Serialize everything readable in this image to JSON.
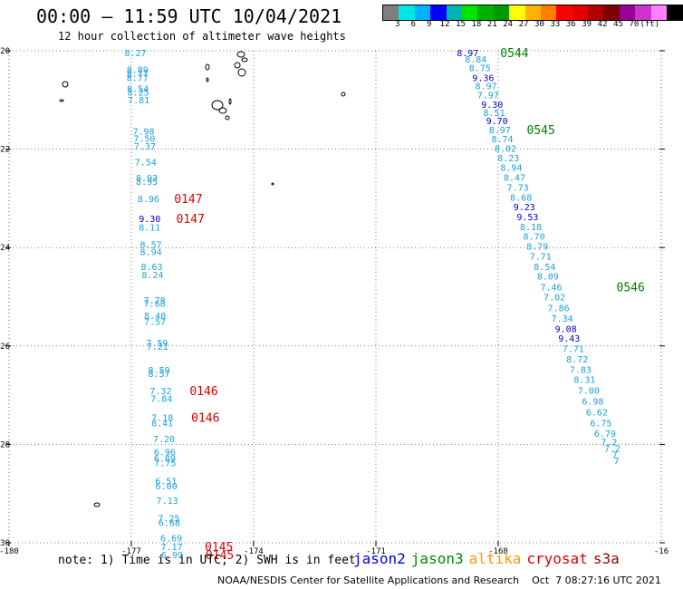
{
  "header": {
    "title": "00:00 – 11:59 UTC 10/04/2021",
    "subtitle": "12 hour collection of altimeter wave heights"
  },
  "colorbar": {
    "colors": [
      "#7f7f7f",
      "#00e5e5",
      "#00b2ff",
      "#0000ff",
      "#00b2b2",
      "#00e500",
      "#00b200",
      "#009900",
      "#ffff00",
      "#ffb200",
      "#ff7f00",
      "#ff0000",
      "#e50000",
      "#b20000",
      "#7f0000",
      "#990099",
      "#cc33cc",
      "#ff80ff",
      "#000000"
    ],
    "labels": [
      "3",
      "6",
      "9",
      "12",
      "15",
      "18",
      "21",
      "24",
      "27",
      "30",
      "33",
      "36",
      "39",
      "42",
      "45",
      "70",
      "(ft)"
    ]
  },
  "axes": {
    "lon_range": [
      -180,
      -164
    ],
    "lat_range": [
      -30,
      -20
    ],
    "x_tick_labels": [
      "-180",
      "-177",
      "-174",
      "-171",
      "-168",
      "-16"
    ],
    "y_tick_labels": [
      "-20",
      "-22",
      "-24",
      "-26",
      "-28",
      "-30"
    ]
  },
  "chart_data": {
    "type": "scatter",
    "tracks": [
      {
        "name": "track-west",
        "points": [
          {
            "lon": -176.9,
            "lat": -20.04,
            "swh": "8.27"
          },
          {
            "lon": -176.85,
            "lat": -20.38,
            "swh": "8.89"
          },
          {
            "lon": -176.85,
            "lat": -20.46,
            "swh": "8.77"
          },
          {
            "lon": -176.85,
            "lat": -20.54,
            "swh": "8.77"
          },
          {
            "lon": -176.84,
            "lat": -20.76,
            "swh": "8.54"
          },
          {
            "lon": -176.83,
            "lat": -20.84,
            "swh": "8.25"
          },
          {
            "lon": -176.82,
            "lat": -20.99,
            "swh": "7.81"
          },
          {
            "lon": -176.7,
            "lat": -21.63,
            "swh": "7.98"
          },
          {
            "lon": -176.68,
            "lat": -21.78,
            "swh": "7.50"
          },
          {
            "lon": -176.67,
            "lat": -21.93,
            "swh": "7.37"
          },
          {
            "lon": -176.65,
            "lat": -22.26,
            "swh": "7.54"
          },
          {
            "lon": -176.62,
            "lat": -22.58,
            "swh": "8.93"
          },
          {
            "lon": -176.62,
            "lat": -22.65,
            "swh": "8.95"
          },
          {
            "lon": -176.58,
            "lat": -23.0,
            "swh": "8.96"
          },
          {
            "lon": -176.55,
            "lat": -23.41,
            "swh": "9.30",
            "dark": true
          },
          {
            "lon": -176.55,
            "lat": -23.58,
            "swh": "8.11"
          },
          {
            "lon": -176.52,
            "lat": -23.93,
            "swh": "8.57"
          },
          {
            "lon": -176.52,
            "lat": -24.08,
            "swh": "8.94"
          },
          {
            "lon": -176.5,
            "lat": -24.38,
            "swh": "8.63"
          },
          {
            "lon": -176.48,
            "lat": -24.55,
            "swh": "8.24"
          },
          {
            "lon": -176.43,
            "lat": -25.06,
            "swh": "7.78"
          },
          {
            "lon": -176.43,
            "lat": -25.13,
            "swh": "7.68"
          },
          {
            "lon": -176.42,
            "lat": -25.38,
            "swh": "8.40"
          },
          {
            "lon": -176.42,
            "lat": -25.5,
            "swh": "7.57"
          },
          {
            "lon": -176.37,
            "lat": -25.93,
            "swh": "7.59"
          },
          {
            "lon": -176.36,
            "lat": -26.0,
            "swh": "7.21"
          },
          {
            "lon": -176.32,
            "lat": -26.48,
            "swh": "8.59"
          },
          {
            "lon": -176.32,
            "lat": -26.56,
            "swh": "8.57"
          },
          {
            "lon": -176.28,
            "lat": -26.91,
            "swh": "7.32"
          },
          {
            "lon": -176.26,
            "lat": -27.06,
            "swh": "7.84"
          },
          {
            "lon": -176.24,
            "lat": -27.45,
            "swh": "7.18"
          },
          {
            "lon": -176.24,
            "lat": -27.56,
            "swh": "8.41"
          },
          {
            "lon": -176.2,
            "lat": -27.88,
            "swh": "7.20"
          },
          {
            "lon": -176.18,
            "lat": -28.15,
            "swh": "6.96"
          },
          {
            "lon": -176.18,
            "lat": -28.28,
            "swh": "6.89"
          },
          {
            "lon": -176.17,
            "lat": -28.37,
            "swh": "7.75"
          },
          {
            "lon": -176.15,
            "lat": -28.74,
            "swh": "6.51"
          },
          {
            "lon": -176.14,
            "lat": -28.84,
            "swh": "6.00"
          },
          {
            "lon": -176.12,
            "lat": -29.13,
            "swh": "7.13"
          },
          {
            "lon": -176.08,
            "lat": -29.49,
            "swh": "7.25"
          },
          {
            "lon": -176.07,
            "lat": -29.59,
            "swh": "6.68"
          },
          {
            "lon": -176.02,
            "lat": -29.9,
            "swh": "6.69"
          },
          {
            "lon": -176.01,
            "lat": -30.07,
            "swh": "7.17"
          },
          {
            "lon": -176.0,
            "lat": -30.24,
            "swh": "6.99"
          }
        ]
      },
      {
        "name": "track-east",
        "points": [
          {
            "lon": -168.75,
            "lat": -20.04,
            "swh": "8.97",
            "dark": true
          },
          {
            "lon": -168.55,
            "lat": -20.17,
            "swh": "8.84"
          },
          {
            "lon": -168.45,
            "lat": -20.34,
            "swh": "8.75"
          },
          {
            "lon": -168.37,
            "lat": -20.54,
            "swh": "9.36",
            "dark": true
          },
          {
            "lon": -168.3,
            "lat": -20.71,
            "swh": "8.97"
          },
          {
            "lon": -168.25,
            "lat": -20.89,
            "swh": "7.97"
          },
          {
            "lon": -168.15,
            "lat": -21.09,
            "swh": "9.30",
            "dark": true
          },
          {
            "lon": -168.1,
            "lat": -21.25,
            "swh": "8.51"
          },
          {
            "lon": -168.03,
            "lat": -21.42,
            "swh": "9.70",
            "dark": true
          },
          {
            "lon": -167.96,
            "lat": -21.6,
            "swh": "8.97"
          },
          {
            "lon": -167.9,
            "lat": -21.79,
            "swh": "8.74"
          },
          {
            "lon": -167.82,
            "lat": -21.98,
            "swh": "8.02"
          },
          {
            "lon": -167.75,
            "lat": -22.17,
            "swh": "8.23"
          },
          {
            "lon": -167.68,
            "lat": -22.37,
            "swh": "8.94"
          },
          {
            "lon": -167.6,
            "lat": -22.57,
            "swh": "8.47"
          },
          {
            "lon": -167.52,
            "lat": -22.77,
            "swh": "7.73"
          },
          {
            "lon": -167.44,
            "lat": -22.97,
            "swh": "8.68"
          },
          {
            "lon": -167.36,
            "lat": -23.17,
            "swh": "9.23",
            "dark": true
          },
          {
            "lon": -167.28,
            "lat": -23.37,
            "swh": "9.53",
            "dark": true
          },
          {
            "lon": -167.2,
            "lat": -23.57,
            "swh": "8.18"
          },
          {
            "lon": -167.12,
            "lat": -23.77,
            "swh": "8.70"
          },
          {
            "lon": -167.04,
            "lat": -23.97,
            "swh": "8.79"
          },
          {
            "lon": -166.96,
            "lat": -24.17,
            "swh": "7.71"
          },
          {
            "lon": -166.86,
            "lat": -24.38,
            "swh": "8.54"
          },
          {
            "lon": -166.78,
            "lat": -24.58,
            "swh": "8.09"
          },
          {
            "lon": -166.7,
            "lat": -24.8,
            "swh": "7.46"
          },
          {
            "lon": -166.62,
            "lat": -25.0,
            "swh": "7.02"
          },
          {
            "lon": -166.52,
            "lat": -25.22,
            "swh": "7.86"
          },
          {
            "lon": -166.43,
            "lat": -25.43,
            "swh": "7.34"
          },
          {
            "lon": -166.34,
            "lat": -25.64,
            "swh": "9.08",
            "dark": true
          },
          {
            "lon": -166.26,
            "lat": -25.84,
            "swh": "9.43",
            "dark": true
          },
          {
            "lon": -166.16,
            "lat": -26.05,
            "swh": "7.71"
          },
          {
            "lon": -166.06,
            "lat": -26.26,
            "swh": "8.72"
          },
          {
            "lon": -165.98,
            "lat": -26.47,
            "swh": "7.83"
          },
          {
            "lon": -165.88,
            "lat": -26.68,
            "swh": "8.31"
          },
          {
            "lon": -165.78,
            "lat": -26.9,
            "swh": "7.00"
          },
          {
            "lon": -165.68,
            "lat": -27.12,
            "swh": "6.98"
          },
          {
            "lon": -165.58,
            "lat": -27.34,
            "swh": "6.62"
          },
          {
            "lon": -165.48,
            "lat": -27.56,
            "swh": "6.75"
          },
          {
            "lon": -165.38,
            "lat": -27.77,
            "swh": "6.79"
          },
          {
            "lon": -165.28,
            "lat": -27.95,
            "swh": "7.2"
          },
          {
            "lon": -165.2,
            "lat": -28.08,
            "swh": "7.2"
          },
          {
            "lon": -165.14,
            "lat": -28.2,
            "swh": "7"
          },
          {
            "lon": -165.1,
            "lat": -28.32,
            "swh": "7"
          }
        ]
      }
    ],
    "pass_labels": [
      {
        "text": "0147",
        "lon": -175.95,
        "lat": -23.0,
        "color": "#e00000"
      },
      {
        "text": "0147",
        "lon": -175.9,
        "lat": -23.41,
        "color": "#e00000"
      },
      {
        "text": "0146",
        "lon": -175.57,
        "lat": -26.91,
        "color": "#e00000"
      },
      {
        "text": "0146",
        "lon": -175.53,
        "lat": -27.45,
        "color": "#e00000"
      },
      {
        "text": "0145",
        "lon": -175.2,
        "lat": -30.07,
        "color": "#e00000"
      },
      {
        "text": "0145",
        "lon": -175.18,
        "lat": -30.24,
        "color": "#e00000"
      },
      {
        "text": "0544",
        "lon": -167.95,
        "lat": -20.04,
        "color": "#008000"
      },
      {
        "text": "0545",
        "lon": -167.3,
        "lat": -21.6,
        "color": "#008000"
      },
      {
        "text": "0546",
        "lon": -165.1,
        "lat": -24.8,
        "color": "#008000"
      }
    ]
  },
  "footer": {
    "note": "note: 1) Time is in UTC; 2) SWH is in feet",
    "legend": [
      {
        "label": "jason2",
        "color": "#0000dd"
      },
      {
        "label": "jason3",
        "color": "#008800"
      },
      {
        "label": "altika",
        "color": "#ff9900"
      },
      {
        "label": "cryosat",
        "color": "#dd0000"
      },
      {
        "label": "s3a",
        "color": "#990000"
      }
    ],
    "credit": "NOAA/NESDIS Center for Satellite Applications and Research    Oct  7 08:27:16 UTC 2021"
  },
  "colors": {
    "swh_light": "#1aa0dc",
    "swh_dark": "#0000cc",
    "grid": "#000000"
  }
}
